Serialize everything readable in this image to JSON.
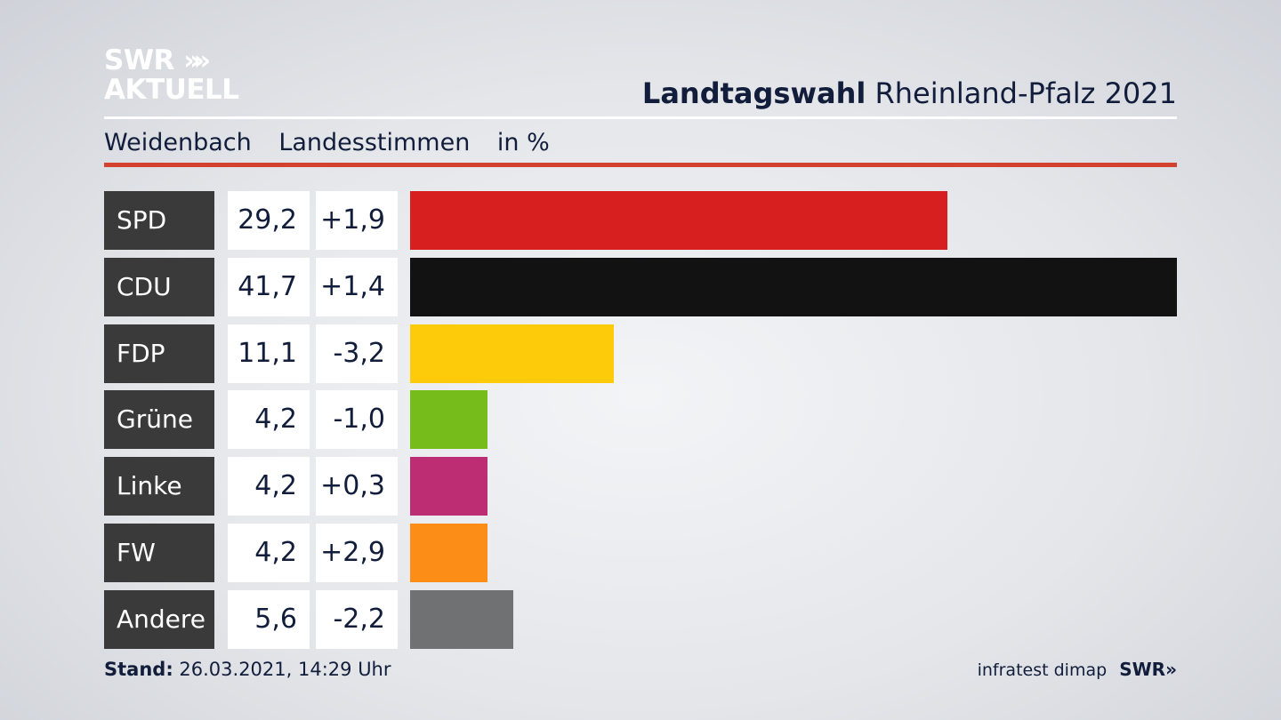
{
  "brand": {
    "logo_line1": "SWR",
    "logo_chevrons": "»",
    "logo_line2": "AKTUELL"
  },
  "header": {
    "title_bold": "Landtagswahl",
    "title_rest": "Rheinland-Pfalz 2021"
  },
  "subheader": {
    "location": "Weidenbach",
    "vote_type": "Landesstimmen",
    "unit": "in %"
  },
  "footer": {
    "stand_label": "Stand:",
    "stand_value": "26.03.2021, 14:29 Uhr",
    "source": "infratest dimap",
    "source_logo": "SWR»"
  },
  "colors": {
    "accent_rule": "#d2422f",
    "label_bg": "#3a3a3a"
  },
  "chart_data": {
    "type": "bar",
    "orientation": "horizontal",
    "categories": [
      "SPD",
      "CDU",
      "FDP",
      "Grüne",
      "Linke",
      "FW",
      "Andere"
    ],
    "values": [
      29.2,
      41.7,
      11.1,
      4.2,
      4.2,
      4.2,
      5.6
    ],
    "value_labels": [
      "29,2",
      "41,7",
      "11,1",
      "4,2",
      "4,2",
      "4,2",
      "5,6"
    ],
    "diff_labels": [
      "+1,9",
      "+1,4",
      "-3,2",
      "-1,0",
      "+0,3",
      "+2,9",
      "-2,2"
    ],
    "colors": [
      "#d71f1f",
      "#121212",
      "#fecb0a",
      "#76bc1b",
      "#bd2d73",
      "#fc8e17",
      "#707173"
    ],
    "xlim": [
      0,
      41.7
    ],
    "grid": false,
    "legend": "none"
  }
}
